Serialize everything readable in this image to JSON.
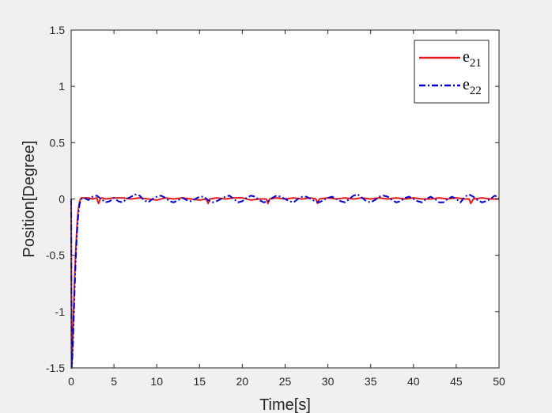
{
  "chart_data": {
    "type": "line",
    "title": "",
    "xlabel": "Time[s]",
    "ylabel": "Position[Degree]",
    "xlim": [
      0,
      50
    ],
    "ylim": [
      -1.5,
      1.5
    ],
    "xticks": [
      0,
      5,
      10,
      15,
      20,
      25,
      30,
      35,
      40,
      45,
      50
    ],
    "yticks": [
      -1.5,
      -1,
      -0.5,
      0,
      0.5,
      1,
      1.5
    ],
    "xtick_labels": [
      "0",
      "5",
      "10",
      "15",
      "20",
      "25",
      "30",
      "35",
      "40",
      "45",
      "50"
    ],
    "ytick_labels": [
      "-1.5",
      "-1",
      "-0.5",
      "0",
      "0.5",
      "1",
      "1.5"
    ],
    "grid": false,
    "legend_position": "top-right",
    "series": [
      {
        "name_base": "e",
        "name_sub": "21",
        "color": "#e41a1c",
        "style": "solid",
        "x": [
          0,
          0.05,
          0.1,
          0.2,
          0.3,
          0.4,
          0.5,
          0.6,
          0.7,
          0.8,
          0.9,
          1.0,
          1.1,
          1.2,
          1.3,
          1.5,
          2.0,
          2.5,
          3.0,
          3.2,
          3.4,
          3.6,
          4.0,
          5.0,
          6.0,
          7.0,
          8.0,
          9.0,
          10.0,
          11.0,
          12.0,
          13.0,
          14.0,
          15.0,
          15.8,
          16.0,
          16.2,
          17.0,
          18.0,
          19.0,
          20.0,
          21.0,
          22.0,
          22.8,
          23.0,
          23.2,
          24.0,
          25.0,
          26.0,
          27.0,
          28.0,
          28.6,
          28.8,
          29.0,
          30.0,
          31.0,
          32.0,
          33.0,
          34.0,
          35.0,
          36.0,
          37.0,
          38.0,
          39.0,
          40.0,
          41.0,
          42.0,
          43.0,
          44.0,
          45.0,
          46.0,
          46.5,
          46.7,
          47.0,
          48.0,
          49.0,
          50.0
        ],
        "values": [
          0.0,
          -1.5,
          -1.45,
          -1.2,
          -0.95,
          -0.72,
          -0.52,
          -0.36,
          -0.22,
          -0.12,
          -0.06,
          -0.02,
          0.0,
          0.01,
          0.01,
          0.01,
          0.01,
          0.0,
          0.01,
          -0.04,
          0.0,
          0.01,
          0.0,
          0.01,
          0.01,
          0.0,
          0.01,
          0.0,
          -0.01,
          0.01,
          0.0,
          0.01,
          0.0,
          -0.01,
          0.0,
          -0.04,
          0.0,
          0.01,
          0.0,
          0.01,
          0.01,
          -0.01,
          0.0,
          0.0,
          -0.04,
          0.0,
          0.01,
          0.0,
          0.01,
          0.0,
          0.01,
          0.0,
          -0.04,
          0.0,
          0.01,
          0.0,
          0.01,
          0.0,
          0.01,
          0.0,
          0.01,
          0.0,
          0.01,
          0.0,
          0.01,
          0.0,
          0.0,
          0.01,
          0.0,
          0.01,
          0.0,
          0.0,
          -0.04,
          0.0,
          0.01,
          0.0,
          0.0
        ]
      },
      {
        "name_base": "e",
        "name_sub": "22",
        "color": "#0000cc",
        "style": "dashdot",
        "x": [
          0,
          0.05,
          0.1,
          0.2,
          0.3,
          0.4,
          0.5,
          0.6,
          0.7,
          0.8,
          0.9,
          1.0,
          1.2,
          1.5,
          2.0,
          2.5,
          3.0,
          3.5,
          4.0,
          4.5,
          5.0,
          5.5,
          6.0,
          6.5,
          7.0,
          7.5,
          8.0,
          8.5,
          9.0,
          9.5,
          10.0,
          10.5,
          11.0,
          11.5,
          12.0,
          12.5,
          13.0,
          13.5,
          14.0,
          14.5,
          15.0,
          15.5,
          16.0,
          16.5,
          17.0,
          17.5,
          18.0,
          18.5,
          19.0,
          19.5,
          20.0,
          20.5,
          21.0,
          21.5,
          22.0,
          22.5,
          23.0,
          23.5,
          24.0,
          24.5,
          25.0,
          25.5,
          26.0,
          26.5,
          27.0,
          27.5,
          28.0,
          28.5,
          29.0,
          29.5,
          30.0,
          30.5,
          31.0,
          31.5,
          32.0,
          32.5,
          33.0,
          33.5,
          34.0,
          34.5,
          35.0,
          35.5,
          36.0,
          36.5,
          37.0,
          37.5,
          38.0,
          38.5,
          39.0,
          39.5,
          40.0,
          40.5,
          41.0,
          41.5,
          42.0,
          42.5,
          43.0,
          43.5,
          44.0,
          44.5,
          45.0,
          45.5,
          46.0,
          46.5,
          47.0,
          47.5,
          48.0,
          48.5,
          49.0,
          49.5,
          50.0
        ],
        "values": [
          0.0,
          -1.5,
          -1.48,
          -1.3,
          -1.05,
          -0.82,
          -0.6,
          -0.42,
          -0.28,
          -0.17,
          -0.09,
          -0.04,
          0.0,
          0.01,
          -0.01,
          0.02,
          0.03,
          0.0,
          -0.03,
          -0.02,
          0.01,
          -0.02,
          -0.03,
          0.0,
          0.02,
          0.04,
          0.03,
          -0.01,
          -0.03,
          0.0,
          0.02,
          0.03,
          0.01,
          -0.02,
          -0.03,
          -0.01,
          0.01,
          -0.01,
          -0.02,
          0.0,
          0.02,
          0.02,
          -0.01,
          -0.03,
          -0.02,
          0.0,
          0.02,
          0.03,
          0.0,
          -0.03,
          -0.02,
          0.01,
          0.03,
          0.02,
          -0.01,
          -0.03,
          -0.02,
          0.01,
          0.03,
          0.02,
          0.0,
          -0.02,
          -0.03,
          0.0,
          0.02,
          0.02,
          0.0,
          -0.02,
          -0.03,
          -0.01,
          0.01,
          0.02,
          0.0,
          -0.02,
          -0.03,
          0.0,
          0.03,
          0.04,
          0.01,
          -0.02,
          -0.03,
          -0.01,
          0.02,
          0.03,
          0.02,
          -0.01,
          -0.03,
          -0.02,
          0.01,
          0.02,
          0.0,
          -0.02,
          -0.03,
          0.0,
          0.02,
          0.0,
          -0.03,
          -0.03,
          0.0,
          0.02,
          0.0,
          -0.03,
          0.02,
          0.04,
          0.02,
          -0.01,
          -0.03,
          -0.02,
          0.0,
          0.03,
          0.01
        ]
      }
    ]
  }
}
